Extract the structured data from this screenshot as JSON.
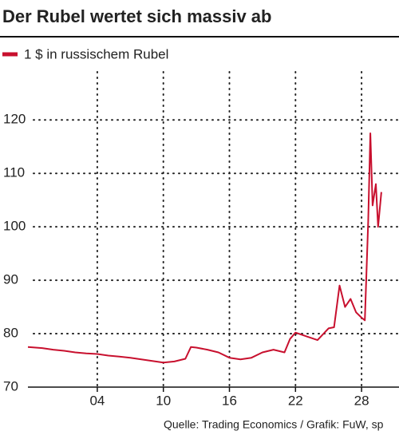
{
  "chart_data": {
    "type": "line",
    "title": "Der Rubel wertet sich massiv ab",
    "source": "Quelle: Trading Economics / Grafik: FuW, sp",
    "x": [
      -2.3,
      -1,
      0,
      1,
      2,
      3,
      4,
      5,
      6,
      7,
      8,
      9,
      10,
      11,
      12,
      12.5,
      13,
      14,
      15,
      16,
      17,
      18,
      19,
      20,
      21,
      21.5,
      22,
      23,
      24,
      25,
      25.5,
      26,
      26.5,
      27,
      27.5,
      28,
      28.3,
      28.6,
      28.8,
      29,
      29.3,
      29.5,
      29.8
    ],
    "series": [
      {
        "name": "1 $ in russischem Rubel",
        "color": "#c8102e",
        "values": [
          77.5,
          77.3,
          77,
          76.8,
          76.5,
          76.3,
          76.2,
          75.9,
          75.7,
          75.5,
          75.2,
          74.9,
          74.6,
          74.8,
          75.3,
          77.5,
          77.4,
          77,
          76.5,
          75.5,
          75.2,
          75.5,
          76.5,
          77,
          76.5,
          79,
          80.2,
          79.5,
          78.8,
          81,
          81.2,
          89,
          85,
          86.5,
          84,
          83,
          82.5,
          101,
          117.5,
          104,
          108,
          100,
          106.5
        ]
      }
    ],
    "xlim": [
      -2.3,
      31.4
    ],
    "xticks": [
      {
        "value": 4,
        "label": "04"
      },
      10,
      16,
      22,
      28
    ],
    "ylim": [
      70,
      129
    ],
    "yticks": [
      70,
      80,
      90,
      100,
      110,
      120
    ],
    "grid": true
  }
}
